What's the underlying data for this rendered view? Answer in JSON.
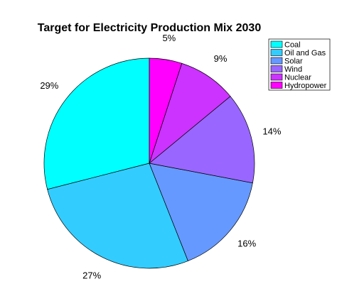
{
  "chart_data": {
    "type": "pie",
    "title": "Target for Electricity Production Mix 2030",
    "legend_position": "top-right",
    "slices": [
      {
        "label": "Coal",
        "value": 29,
        "display": "29%",
        "color": "#00FFFF"
      },
      {
        "label": "Oil and Gas",
        "value": 27,
        "display": "27%",
        "color": "#33CCFF"
      },
      {
        "label": "Solar",
        "value": 16,
        "display": "16%",
        "color": "#6699FF"
      },
      {
        "label": "Wind",
        "value": 14,
        "display": "14%",
        "color": "#9966FF"
      },
      {
        "label": "Nuclear",
        "value": 9,
        "display": "9%",
        "color": "#CC33FF"
      },
      {
        "label": "Hydropower",
        "value": 5,
        "display": "5%",
        "color": "#FF00FF"
      }
    ]
  }
}
